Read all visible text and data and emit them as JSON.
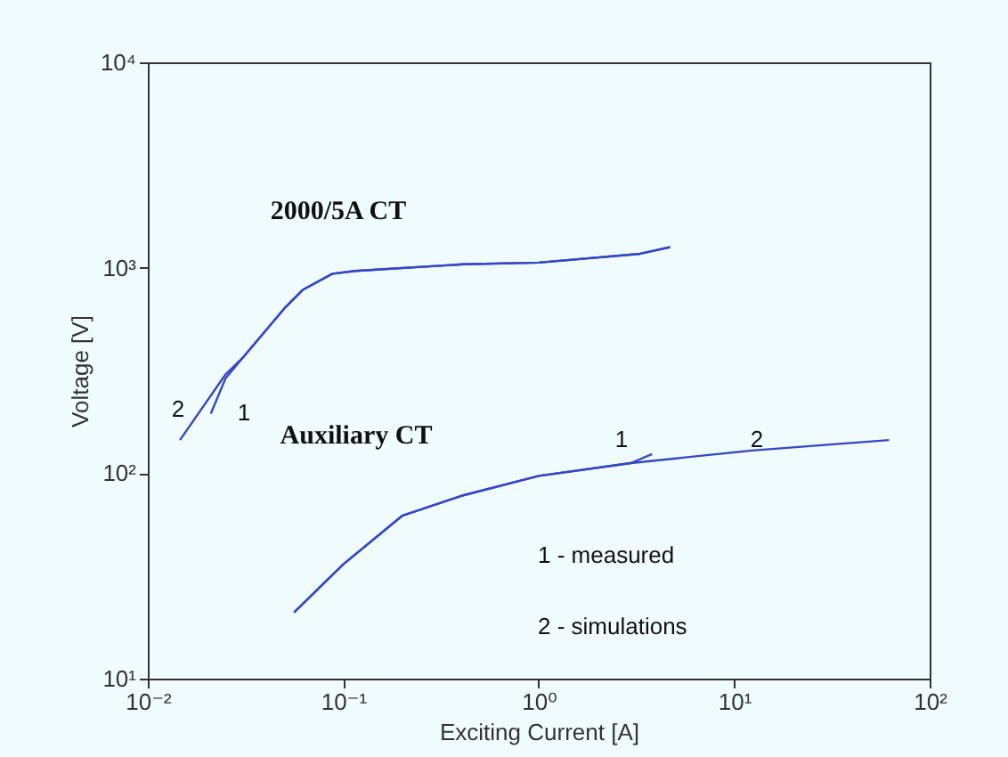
{
  "chart_data": {
    "type": "line",
    "xlabel": "Exciting Current [A]",
    "ylabel": "Voltage [V]",
    "log": "xy",
    "xlim": [
      0.01,
      100
    ],
    "xticks": [
      {
        "value": 0.01,
        "label": "10⁻²"
      },
      {
        "value": 0.1,
        "label": "10⁻¹"
      },
      {
        "value": 1,
        "label": "10⁰"
      },
      {
        "value": 10,
        "label": "10¹"
      },
      {
        "value": 100,
        "label": "10²"
      }
    ],
    "ylim": [
      10,
      10000
    ],
    "yticks": [
      {
        "value": 10,
        "label": "10¹"
      },
      {
        "value": 100,
        "label": "10²"
      },
      {
        "value": 1000,
        "label": "10³"
      },
      {
        "value": 10000,
        "label": "10⁴"
      }
    ],
    "series": [
      {
        "color": "#3548c4",
        "x": [
          0.021,
          0.025,
          0.031,
          0.05,
          0.062,
          0.088,
          0.115,
          0.41,
          1.0,
          3.3,
          4.7
        ],
        "values": [
          195,
          290,
          370,
          635,
          780,
          935,
          965,
          1040,
          1060,
          1170,
          1260
        ]
      },
      {
        "color": "#3548c4",
        "x": [
          0.0146,
          0.025,
          0.031,
          0.05,
          0.062,
          0.088,
          0.115,
          0.41,
          1.0,
          3.3,
          4.7
        ],
        "values": [
          145,
          303,
          370,
          635,
          780,
          935,
          965,
          1040,
          1060,
          1170,
          1260
        ]
      },
      {
        "color": "#3548c4",
        "x": [
          0.056,
          0.1,
          0.2,
          0.41,
          1.0,
          2.96,
          3.8
        ],
        "values": [
          21,
          36,
          62,
          78,
          97,
          112,
          124
        ]
      },
      {
        "color": "#3548c4",
        "x": [
          0.056,
          0.1,
          0.2,
          0.41,
          1.0,
          2.96,
          12.3,
          62
        ],
        "values": [
          21,
          36,
          62,
          78,
          97,
          112,
          129,
          145
        ]
      }
    ],
    "annotations": [
      "2000/5A CT",
      "Auxiliary CT",
      "2",
      "1",
      "1",
      "2",
      "1 - measured",
      "2 - simulations"
    ]
  }
}
